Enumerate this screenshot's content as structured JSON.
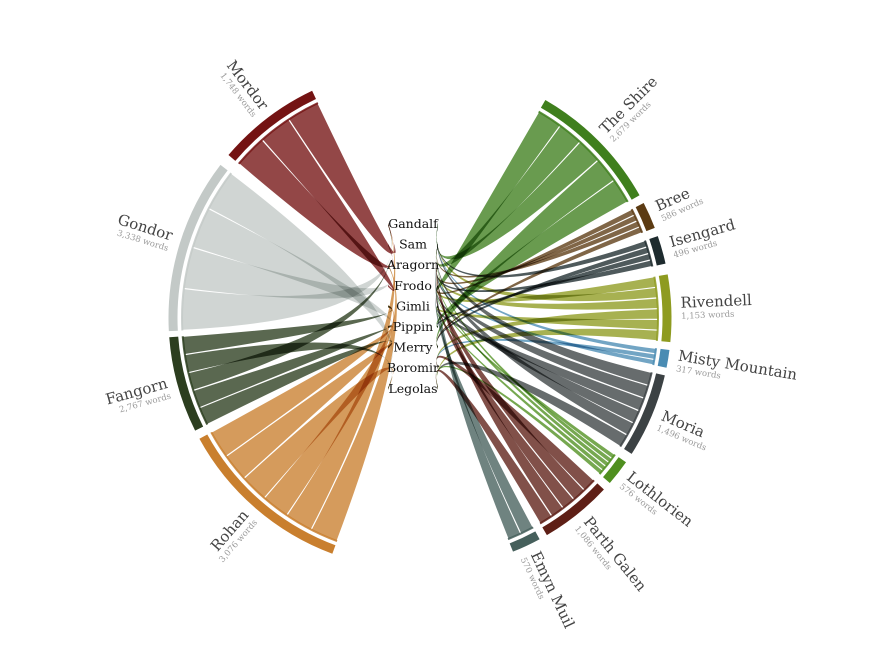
{
  "characters": [
    "Gandalf",
    "Sam",
    "Aragorn",
    "Frodo",
    "Gimli",
    "Pippin",
    "Merry",
    "Boromir",
    "Legolas"
  ],
  "locations": [
    {
      "name": "Mordor",
      "words": "1,748 words",
      "color": "#741313"
    },
    {
      "name": "Gondor",
      "words": "3,338 words",
      "color": "#c3c9c7"
    },
    {
      "name": "Fangorn",
      "words": "2,767 words",
      "color": "#2c3e1f"
    },
    {
      "name": "Rohan",
      "words": "3,076 words",
      "color": "#c97f2e"
    },
    {
      "name": "The Shire",
      "words": "2,679 words",
      "color": "#3f7f1d"
    },
    {
      "name": "Bree",
      "words": "586 words",
      "color": "#5c3b13"
    },
    {
      "name": "Isengard",
      "words": "496 words",
      "color": "#1e2b2e"
    },
    {
      "name": "Rivendell",
      "words": "1,153 words",
      "color": "#8e9b20"
    },
    {
      "name": "Misty Mountain",
      "words": "317 words",
      "color": "#4a8cb3"
    },
    {
      "name": "Moria",
      "words": "1,496 words",
      "color": "#3c4244"
    },
    {
      "name": "Lothlorien",
      "words": "576 words",
      "color": "#4f8f1f"
    },
    {
      "name": "Parth Galen",
      "words": "1,086 words",
      "color": "#5e1f16"
    },
    {
      "name": "Emyn Muil",
      "words": "570 words",
      "color": "#46605c"
    }
  ]
}
